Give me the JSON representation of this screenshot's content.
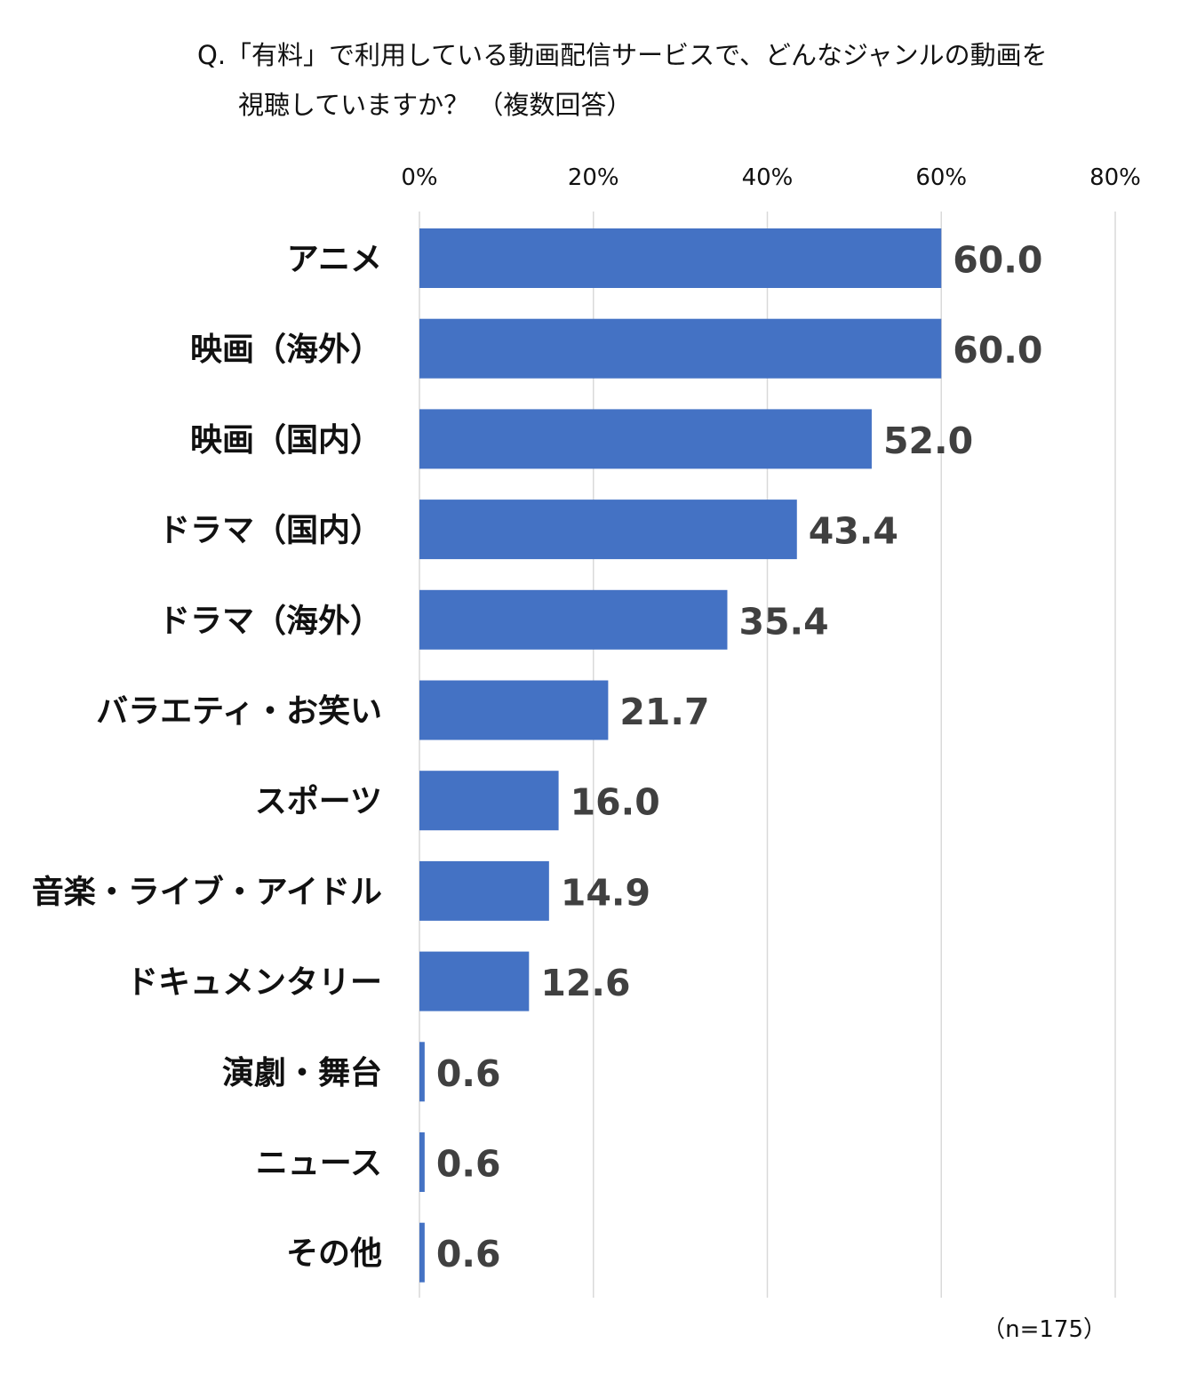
{
  "chart_data": {
    "type": "bar",
    "orientation": "horizontal",
    "title_line1": "Q.「有料」で利用している動画配信サービスで、どんなジャンルの動画を",
    "title_line2": "視聴していますか？ （複数回答）",
    "note": "（n=175）",
    "categories": [
      "アニメ",
      "映画（海外）",
      "映画（国内）",
      "ドラマ（国内）",
      "ドラマ（海外）",
      "バラエティ・お笑い",
      "スポーツ",
      "音楽・ライブ・アイドル",
      "ドキュメンタリー",
      "演劇・舞台",
      "ニュース",
      "その他"
    ],
    "values": [
      60.0,
      60.0,
      52.0,
      43.4,
      35.4,
      21.7,
      16.0,
      14.9,
      12.6,
      0.6,
      0.6,
      0.6
    ],
    "value_labels": [
      "60.0",
      "60.0",
      "52.0",
      "43.4",
      "35.4",
      "21.7",
      "16.0",
      "14.9",
      "12.6",
      "0.6",
      "0.6",
      "0.6"
    ],
    "x_ticks": [
      0,
      20,
      40,
      60,
      80
    ],
    "x_tick_labels": [
      "0%",
      "20%",
      "40%",
      "60%",
      "80%"
    ],
    "xlim": [
      0,
      80
    ],
    "axis_position": "top",
    "grid": true,
    "bar_color": "#4472C4",
    "gridline_color": "#D9D9D9",
    "value_label_color": "#404040"
  }
}
